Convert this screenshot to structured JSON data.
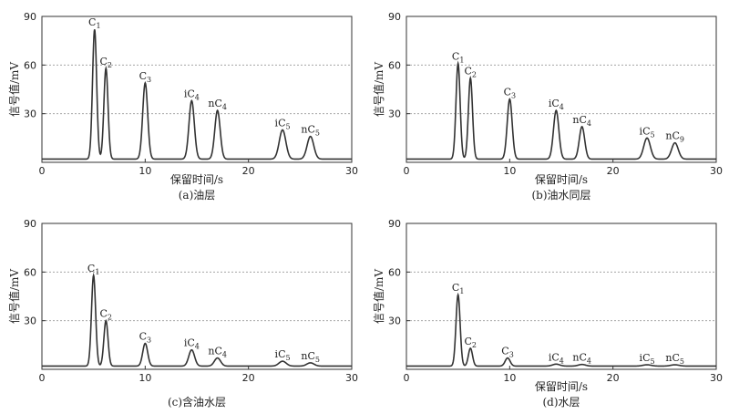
{
  "chart_data": [
    {
      "type": "line",
      "caption": "(a)油层",
      "xlabel": "保留时间/s",
      "ylabel": "信号值/mV",
      "xlim": [
        0,
        30
      ],
      "ylim": [
        0,
        90
      ],
      "x_ticks": [
        0,
        10,
        20,
        30
      ],
      "y_ticks": [
        30,
        60,
        90
      ],
      "grid": "horizontal dotted at y=30, 60",
      "baseline": 2,
      "peaks": [
        {
          "label": "C1",
          "base": "C",
          "sub": "1",
          "prefix": "",
          "x": 5.1,
          "height": 80,
          "width": 0.2
        },
        {
          "label": "C2",
          "base": "C",
          "sub": "2",
          "prefix": "",
          "x": 6.2,
          "height": 56,
          "width": 0.2
        },
        {
          "label": "C3",
          "base": "C",
          "sub": "3",
          "prefix": "",
          "x": 10.0,
          "height": 47,
          "width": 0.24
        },
        {
          "label": "iC4",
          "base": "C",
          "sub": "4",
          "prefix": "i",
          "x": 14.5,
          "height": 36,
          "width": 0.26
        },
        {
          "label": "nC4",
          "base": "C",
          "sub": "4",
          "prefix": "n",
          "x": 17.0,
          "height": 30,
          "width": 0.26
        },
        {
          "label": "iC5",
          "base": "C",
          "sub": "5",
          "prefix": "i",
          "x": 23.3,
          "height": 18,
          "width": 0.32
        },
        {
          "label": "nC5",
          "base": "C",
          "sub": "5",
          "prefix": "n",
          "x": 26.0,
          "height": 14,
          "width": 0.32
        }
      ]
    },
    {
      "type": "line",
      "caption": "(b)油水同层",
      "xlabel": "保留时间/s",
      "ylabel": "信号值/mV",
      "xlim": [
        0,
        30
      ],
      "ylim": [
        0,
        90
      ],
      "x_ticks": [
        0,
        10,
        20,
        30
      ],
      "y_ticks": [
        30,
        60,
        90
      ],
      "grid": "horizontal dotted at y=30, 60",
      "baseline": 2,
      "peaks": [
        {
          "label": "C1",
          "base": "C",
          "sub": "1",
          "prefix": "",
          "x": 5.0,
          "height": 59,
          "width": 0.2
        },
        {
          "label": "C2",
          "base": "C",
          "sub": "2",
          "prefix": "",
          "x": 6.2,
          "height": 50,
          "width": 0.2
        },
        {
          "label": "C3",
          "base": "C",
          "sub": "3",
          "prefix": "",
          "x": 10.0,
          "height": 37,
          "width": 0.24
        },
        {
          "label": "iC4",
          "base": "C",
          "sub": "4",
          "prefix": "i",
          "x": 14.5,
          "height": 30,
          "width": 0.26
        },
        {
          "label": "nC4",
          "base": "C",
          "sub": "4",
          "prefix": "n",
          "x": 17.0,
          "height": 20,
          "width": 0.26
        },
        {
          "label": "iC5",
          "base": "C",
          "sub": "5",
          "prefix": "i",
          "x": 23.3,
          "height": 13,
          "width": 0.32
        },
        {
          "label": "nC9",
          "base": "C",
          "sub": "9",
          "prefix": "n",
          "x": 26.0,
          "height": 10,
          "width": 0.32
        }
      ]
    },
    {
      "type": "line",
      "caption": "(c)含油水层",
      "xlabel": "",
      "ylabel": "信号值/mV",
      "xlim": [
        0,
        30
      ],
      "ylim": [
        0,
        90
      ],
      "x_ticks": [
        0,
        10,
        20,
        30
      ],
      "y_ticks": [
        30,
        60,
        90
      ],
      "grid": "horizontal dotted at y=30, 60",
      "baseline": 2,
      "peaks": [
        {
          "label": "C1",
          "base": "C",
          "sub": "1",
          "prefix": "",
          "x": 5.0,
          "height": 56,
          "width": 0.2
        },
        {
          "label": "C2",
          "base": "C",
          "sub": "2",
          "prefix": "",
          "x": 6.2,
          "height": 28,
          "width": 0.2
        },
        {
          "label": "C3",
          "base": "C",
          "sub": "3",
          "prefix": "",
          "x": 10.0,
          "height": 14,
          "width": 0.24
        },
        {
          "label": "iC4",
          "base": "C",
          "sub": "4",
          "prefix": "i",
          "x": 14.5,
          "height": 10,
          "width": 0.28
        },
        {
          "label": "nC4",
          "base": "C",
          "sub": "4",
          "prefix": "n",
          "x": 17.0,
          "height": 5,
          "width": 0.3
        },
        {
          "label": "iC5",
          "base": "C",
          "sub": "5",
          "prefix": "i",
          "x": 23.3,
          "height": 3,
          "width": 0.35
        },
        {
          "label": "nC5",
          "base": "C",
          "sub": "5",
          "prefix": "n",
          "x": 26.0,
          "height": 2,
          "width": 0.35
        }
      ]
    },
    {
      "type": "line",
      "caption": "(d)水层",
      "xlabel": "保留时间/s",
      "ylabel": "信号值/mV",
      "xlim": [
        0,
        30
      ],
      "ylim": [
        0,
        90
      ],
      "x_ticks": [
        0,
        10,
        20,
        30
      ],
      "y_ticks": [
        30,
        60,
        90
      ],
      "grid": "horizontal dotted at y=30, 60",
      "baseline": 2,
      "peaks": [
        {
          "label": "C1",
          "base": "C",
          "sub": "1",
          "prefix": "",
          "x": 5.0,
          "height": 44,
          "width": 0.2
        },
        {
          "label": "C2",
          "base": "C",
          "sub": "2",
          "prefix": "",
          "x": 6.2,
          "height": 11,
          "width": 0.2
        },
        {
          "label": "C3",
          "base": "C",
          "sub": "3",
          "prefix": "",
          "x": 9.8,
          "height": 5,
          "width": 0.24
        },
        {
          "label": "iC4",
          "base": "C",
          "sub": "4",
          "prefix": "i",
          "x": 14.5,
          "height": 1.2,
          "width": 0.35
        },
        {
          "label": "nC4",
          "base": "C",
          "sub": "4",
          "prefix": "n",
          "x": 17.0,
          "height": 1.0,
          "width": 0.35
        },
        {
          "label": "iC5",
          "base": "C",
          "sub": "5",
          "prefix": "i",
          "x": 23.3,
          "height": 0.8,
          "width": 0.4
        },
        {
          "label": "nC5",
          "base": "C",
          "sub": "5",
          "prefix": "n",
          "x": 26.0,
          "height": 0.8,
          "width": 0.4
        }
      ]
    }
  ]
}
